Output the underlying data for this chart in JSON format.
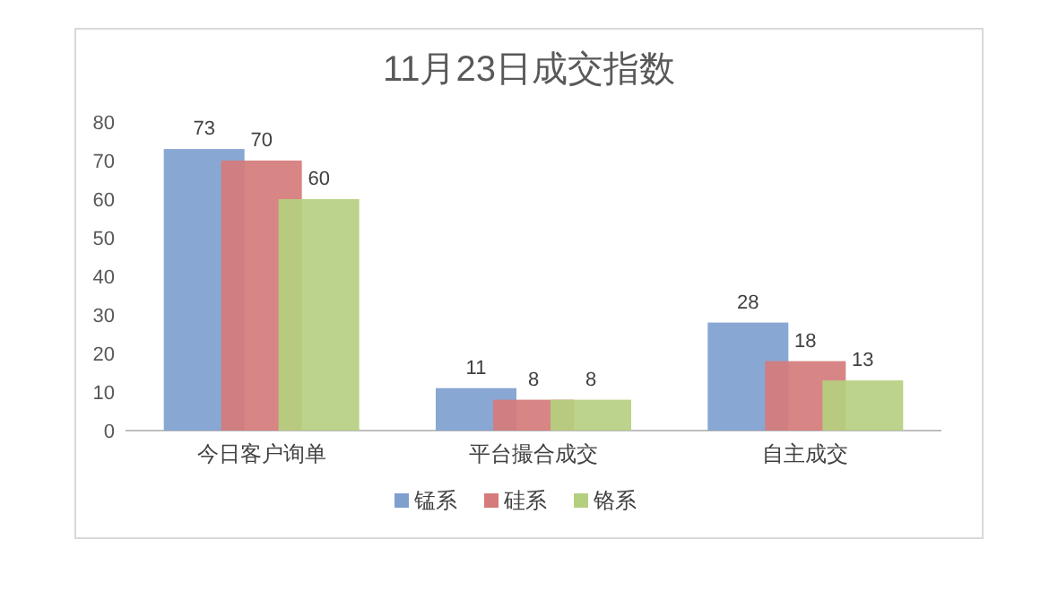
{
  "chart_data": {
    "type": "bar",
    "title": "11月23日成交指数",
    "categories": [
      "今日客户询单",
      "平台撮合成交",
      "自主成交"
    ],
    "series": [
      {
        "name": "锰系",
        "color": "#7f9fcf",
        "values": [
          73,
          11,
          28
        ]
      },
      {
        "name": "硅系",
        "color": "#d57b7b",
        "values": [
          70,
          8,
          18
        ]
      },
      {
        "name": "铬系",
        "color": "#b5cf80",
        "values": [
          60,
          8,
          13
        ]
      }
    ],
    "ylim": [
      0,
      80
    ],
    "yticks": [
      0,
      10,
      20,
      30,
      40,
      50,
      60,
      70,
      80
    ],
    "data_labels": true,
    "legend": "bottom",
    "grid": false
  }
}
